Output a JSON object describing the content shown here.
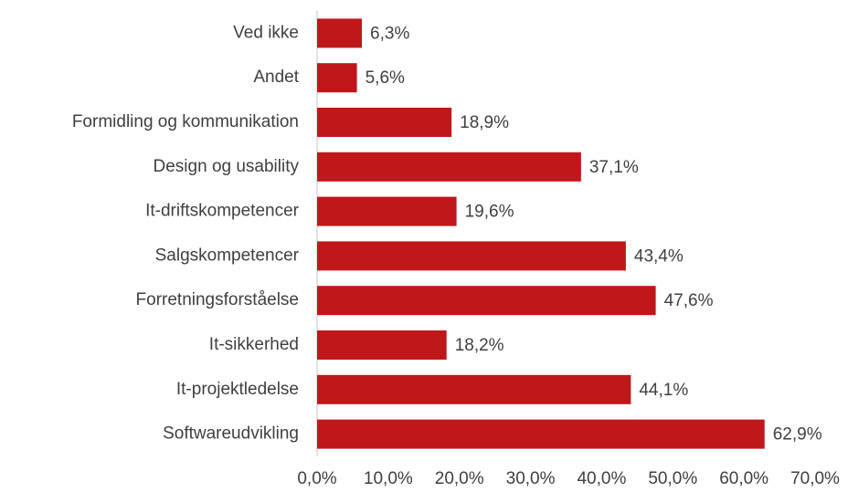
{
  "chart_data": {
    "type": "bar",
    "orientation": "horizontal",
    "categories": [
      "Ved ikke",
      "Andet",
      "Formidling og kommunikation",
      "Design og usability",
      "It-driftskompetencer",
      "Salgskompetencer",
      "Forretningsforståelse",
      "It-sikkerhed",
      "It-projektledelse",
      "Softwareudvikling"
    ],
    "values": [
      6.3,
      5.6,
      18.9,
      37.1,
      19.6,
      43.4,
      47.6,
      18.2,
      44.1,
      62.9
    ],
    "value_labels": [
      "6,3%",
      "5,6%",
      "18,9%",
      "37,1%",
      "19,6%",
      "43,4%",
      "47,6%",
      "18,2%",
      "44,1%",
      "62,9%"
    ],
    "color": "#c0171b",
    "xlim": [
      0,
      70
    ],
    "xticks": [
      {
        "value": 0,
        "label": "0,0%"
      },
      {
        "value": 10,
        "label": "10,0%"
      },
      {
        "value": 20,
        "label": "20,0%"
      },
      {
        "value": 30,
        "label": "30,0%"
      },
      {
        "value": 40,
        "label": "40,0%"
      },
      {
        "value": 50,
        "label": "50,0%"
      },
      {
        "value": 60,
        "label": "60,0%"
      },
      {
        "value": 70,
        "label": "70,0%"
      }
    ],
    "grid": false
  }
}
